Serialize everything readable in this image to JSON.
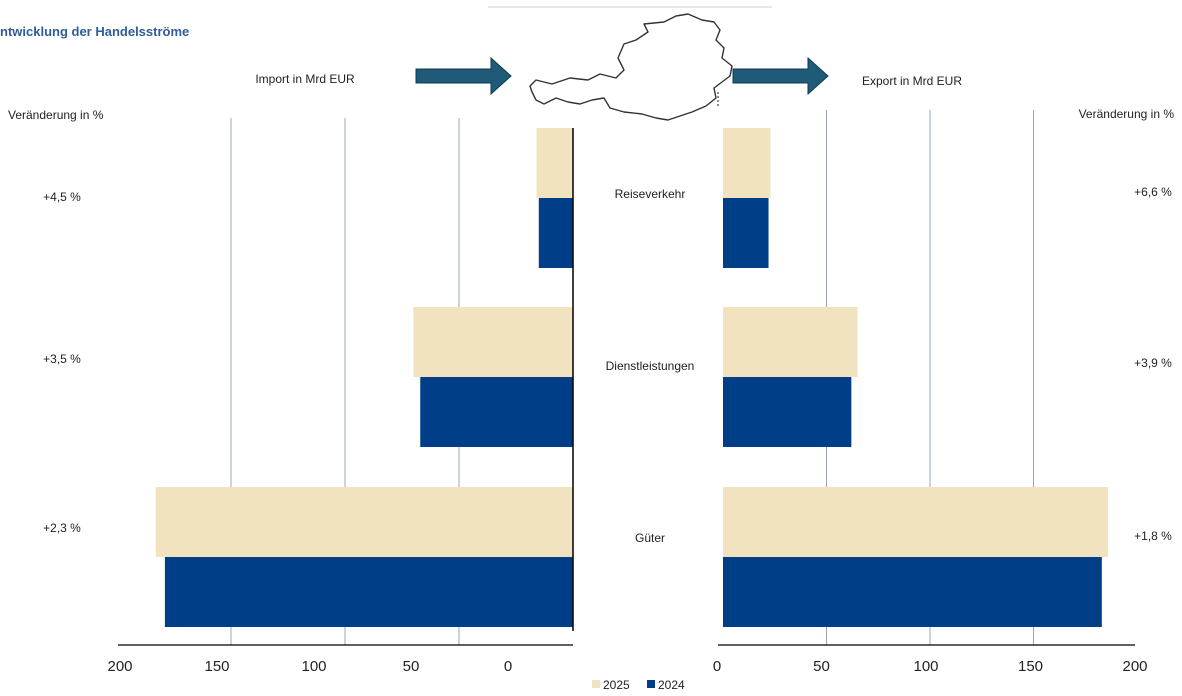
{
  "chart_data": {
    "type": "bar",
    "title": "ntwicklung  der Handelsströme",
    "categories": [
      "Reiseverkehr",
      "Dienstleistungen",
      "Güter"
    ],
    "import": {
      "label": "Import in Mrd EUR",
      "change_header": "Veränderung in %",
      "change": [
        "+4,5 %",
        "+3,5 %",
        "+2,3 %"
      ],
      "series": [
        {
          "name": "2025",
          "values": [
            16,
            70,
            183
          ]
        },
        {
          "name": "2024",
          "values": [
            15,
            67,
            179
          ]
        }
      ],
      "xlim": [
        0,
        200
      ],
      "ticks": [
        "200",
        "150",
        "100",
        "50",
        "0"
      ]
    },
    "export": {
      "label": "Export in Mrd EUR",
      "change_header": "Veränderung in %",
      "change": [
        "+6,6 %",
        "+3,9 %",
        "+1,8 %"
      ],
      "series": [
        {
          "name": "2025",
          "values": [
            23,
            65,
            186
          ]
        },
        {
          "name": "2024",
          "values": [
            22,
            62,
            183
          ]
        }
      ],
      "xlim": [
        0,
        200
      ],
      "ticks": [
        "0",
        "50",
        "100",
        "150",
        "200"
      ]
    },
    "legend": [
      "2025",
      "2024"
    ],
    "colors": {
      "2025": "#f1e3bf",
      "2024": "#003f87",
      "arrow": "#1f5a78",
      "title": "#2e5d9a"
    },
    "grid": true
  }
}
